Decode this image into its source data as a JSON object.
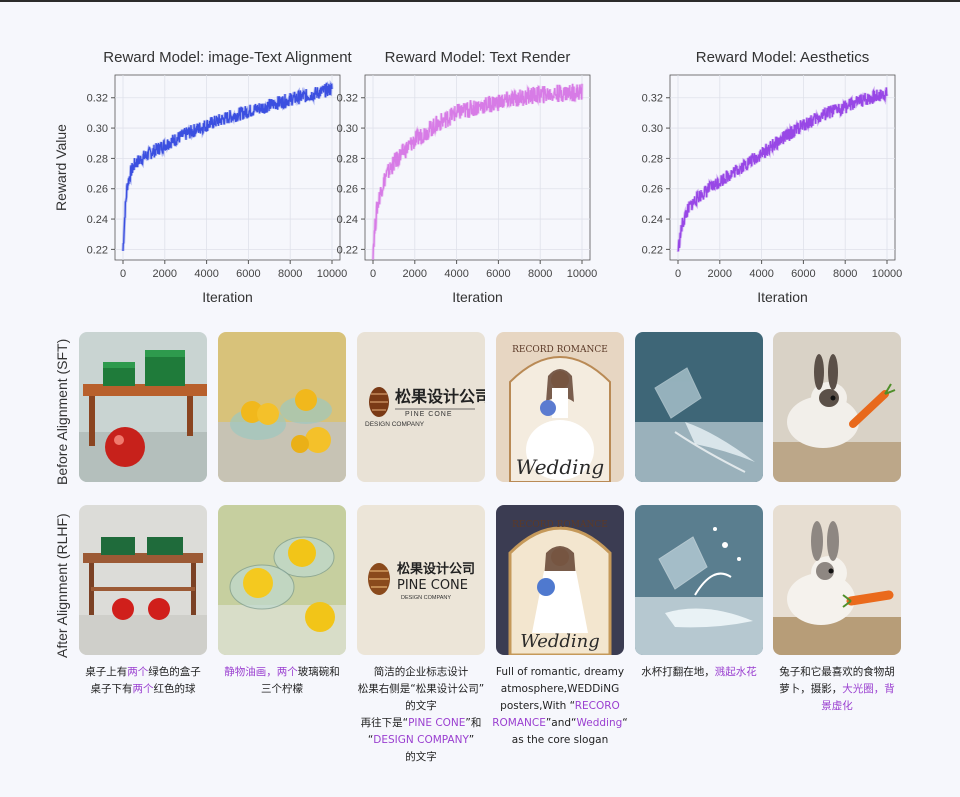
{
  "chart_data": [
    {
      "type": "line",
      "title": "Reward Model: image-Text Alignment",
      "xlabel": "Iteration",
      "ylabel": "Reward Value",
      "xlim": [
        0,
        10000
      ],
      "ylim": [
        0.213,
        0.335
      ],
      "xticks": [
        "0",
        "2000",
        "4000",
        "6000",
        "8000",
        "10000"
      ],
      "yticks": [
        "0.22",
        "0.24",
        "0.26",
        "0.28",
        "0.30",
        "0.32"
      ],
      "grid": true,
      "color": "#3b4fe0",
      "series": [
        {
          "x": [
            0,
            100,
            200,
            400,
            600,
            1000,
            1500,
            2000,
            3000,
            4000,
            5000,
            6000,
            7000,
            8000,
            9000,
            10000
          ],
          "values": [
            0.219,
            0.245,
            0.262,
            0.272,
            0.277,
            0.281,
            0.285,
            0.289,
            0.296,
            0.302,
            0.307,
            0.311,
            0.315,
            0.319,
            0.322,
            0.326
          ]
        }
      ]
    },
    {
      "type": "line",
      "title": "Reward Model: Text Render",
      "xlabel": "Iteration",
      "ylabel": "",
      "xlim": [
        0,
        10000
      ],
      "ylim": [
        0.213,
        0.335
      ],
      "xticks": [
        "0",
        "2000",
        "4000",
        "6000",
        "8000",
        "10000"
      ],
      "yticks": [
        "0.22",
        "0.24",
        "0.26",
        "0.28",
        "0.30",
        "0.32"
      ],
      "grid": true,
      "color": "#d77be6",
      "series": [
        {
          "x": [
            0,
            100,
            200,
            400,
            600,
            1000,
            1500,
            2000,
            3000,
            4000,
            5000,
            6000,
            7000,
            8000,
            9000,
            10000
          ],
          "values": [
            0.219,
            0.235,
            0.248,
            0.26,
            0.268,
            0.277,
            0.285,
            0.292,
            0.302,
            0.31,
            0.314,
            0.317,
            0.32,
            0.322,
            0.323,
            0.324
          ]
        }
      ]
    },
    {
      "type": "line",
      "title": "Reward Model: Aesthetics",
      "xlabel": "Iteration",
      "ylabel": "",
      "xlim": [
        0,
        10000
      ],
      "ylim": [
        0.213,
        0.335
      ],
      "xticks": [
        "0",
        "2000",
        "4000",
        "6000",
        "8000",
        "10000"
      ],
      "yticks": [
        "0.22",
        "0.24",
        "0.26",
        "0.28",
        "0.30",
        "0.32"
      ],
      "grid": true,
      "color": "#9847e6",
      "series": [
        {
          "x": [
            0,
            100,
            200,
            400,
            600,
            1000,
            1500,
            2000,
            3000,
            4000,
            5000,
            6000,
            7000,
            8000,
            9000,
            10000
          ],
          "values": [
            0.219,
            0.228,
            0.236,
            0.244,
            0.249,
            0.255,
            0.26,
            0.265,
            0.274,
            0.283,
            0.293,
            0.302,
            0.309,
            0.314,
            0.319,
            0.323
          ]
        }
      ]
    }
  ],
  "rows": {
    "before_label": "Before Alignment (SFT)",
    "after_label": "After Alignment (RLHF)"
  },
  "image_text": {
    "logo_cn": "松果设计公司",
    "logo_en": "PINE CONE",
    "logo_sub": "DESIGN COMPANY",
    "poster_top": "RECORD ROMANCE",
    "poster_script": "Wedding"
  },
  "captions": [
    {
      "segments": [
        {
          "t": "桌子上有",
          "hl": false
        },
        {
          "t": "两个",
          "hl": true
        },
        {
          "t": "绿色的盒子",
          "hl": false
        },
        {
          "t": "\n",
          "hl": false
        },
        {
          "t": "桌子下有",
          "hl": false
        },
        {
          "t": "两个",
          "hl": true
        },
        {
          "t": "红色的球",
          "hl": false
        }
      ]
    },
    {
      "segments": [
        {
          "t": "静物油画，两个",
          "hl": true
        },
        {
          "t": "玻璃碗和",
          "hl": false
        },
        {
          "t": "\n",
          "hl": false
        },
        {
          "t": "三个柠檬",
          "hl": false
        }
      ]
    },
    {
      "segments": [
        {
          "t": "简洁的企业标志设计",
          "hl": false
        },
        {
          "t": "\n",
          "hl": false
        },
        {
          "t": "松果右侧是“松果设计公司”",
          "hl": false
        },
        {
          "t": "\n",
          "hl": false
        },
        {
          "t": "的文字",
          "hl": false
        },
        {
          "t": "\n",
          "hl": false
        },
        {
          "t": "再往下是“",
          "hl": false
        },
        {
          "t": "PINE CONE",
          "hl": true
        },
        {
          "t": "”和",
          "hl": false
        },
        {
          "t": "\n",
          "hl": false
        },
        {
          "t": "“",
          "hl": false
        },
        {
          "t": "DESIGN COMPANY",
          "hl": true
        },
        {
          "t": "”",
          "hl": false
        },
        {
          "t": "\n",
          "hl": false
        },
        {
          "t": "的文字",
          "hl": false
        }
      ]
    },
    {
      "segments": [
        {
          "t": "Full of romantic, dreamy",
          "hl": false
        },
        {
          "t": "\n",
          "hl": false
        },
        {
          "t": "atmosphere,WEDDiNG",
          "hl": false
        },
        {
          "t": "\n",
          "hl": false
        },
        {
          "t": "posters,With “",
          "hl": false
        },
        {
          "t": "RECORO",
          "hl": true
        },
        {
          "t": "\n",
          "hl": false
        },
        {
          "t": "ROMANCE",
          "hl": true
        },
        {
          "t": "”and“",
          "hl": false
        },
        {
          "t": "Wedding",
          "hl": true
        },
        {
          "t": "“",
          "hl": false
        },
        {
          "t": "\n",
          "hl": false
        },
        {
          "t": "as the core slogan",
          "hl": false
        }
      ]
    },
    {
      "segments": [
        {
          "t": "水杯打翻在地，",
          "hl": false
        },
        {
          "t": "溅起水花",
          "hl": true
        }
      ]
    },
    {
      "segments": [
        {
          "t": "兔子和它最喜欢的食物胡",
          "hl": false
        },
        {
          "t": "\n",
          "hl": false
        },
        {
          "t": "萝卜，摄影，",
          "hl": false
        },
        {
          "t": "大光圈，背",
          "hl": true
        },
        {
          "t": "\n",
          "hl": false
        },
        {
          "t": "景虚化",
          "hl": true
        }
      ]
    }
  ]
}
